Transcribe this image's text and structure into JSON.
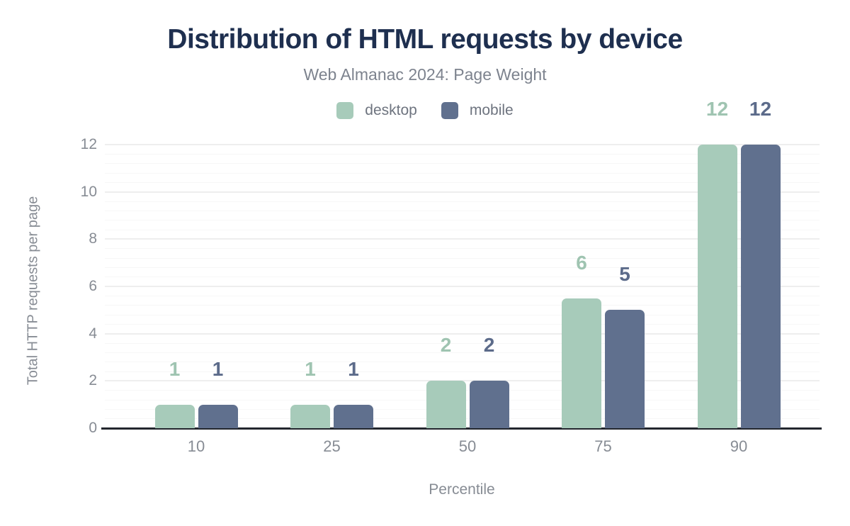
{
  "header": {
    "title": "Distribution of HTML requests by device",
    "subtitle": "Web Almanac 2024: Page Weight"
  },
  "legend": {
    "items": [
      {
        "label": "desktop",
        "color": "#a7cbba"
      },
      {
        "label": "mobile",
        "color": "#60708e"
      }
    ]
  },
  "colors": {
    "title_text": "#1e2f4f",
    "subtitle_text": "#7d838e",
    "axis_text": "#878c94",
    "axis_line": "#23272e",
    "grid_major": "#eeeeee",
    "grid_minor": "#f7f7f7",
    "desktop": "#a7cbba",
    "mobile": "#60708e",
    "desktop_label": "#9fc4b1",
    "mobile_label": "#5c6b8a"
  },
  "chart_data": {
    "type": "bar",
    "title": "Distribution of HTML requests by device",
    "subtitle": "Web Almanac 2024: Page Weight",
    "categories": [
      "10",
      "25",
      "50",
      "75",
      "90"
    ],
    "series": [
      {
        "name": "desktop",
        "color": "#a7cbba",
        "label_color": "#9fc4b1",
        "values": [
          1,
          1,
          2,
          6,
          12
        ],
        "values_rendered": [
          1,
          1,
          2,
          5.5,
          12
        ]
      },
      {
        "name": "mobile",
        "color": "#60708e",
        "label_color": "#5c6b8a",
        "values": [
          1,
          1,
          2,
          5,
          12
        ],
        "values_rendered": [
          1,
          1,
          2,
          5,
          12
        ]
      }
    ],
    "xlabel": "Percentile",
    "ylabel": "Total HTTP requests per page",
    "ylim": [
      0,
      12
    ],
    "y_ticks": [
      0,
      2,
      4,
      6,
      8,
      10,
      12
    ],
    "y_minor_step": 0.4,
    "grid": "horizontal-major-and-minor",
    "legend_position": "top",
    "bar_labels_shown": true
  }
}
